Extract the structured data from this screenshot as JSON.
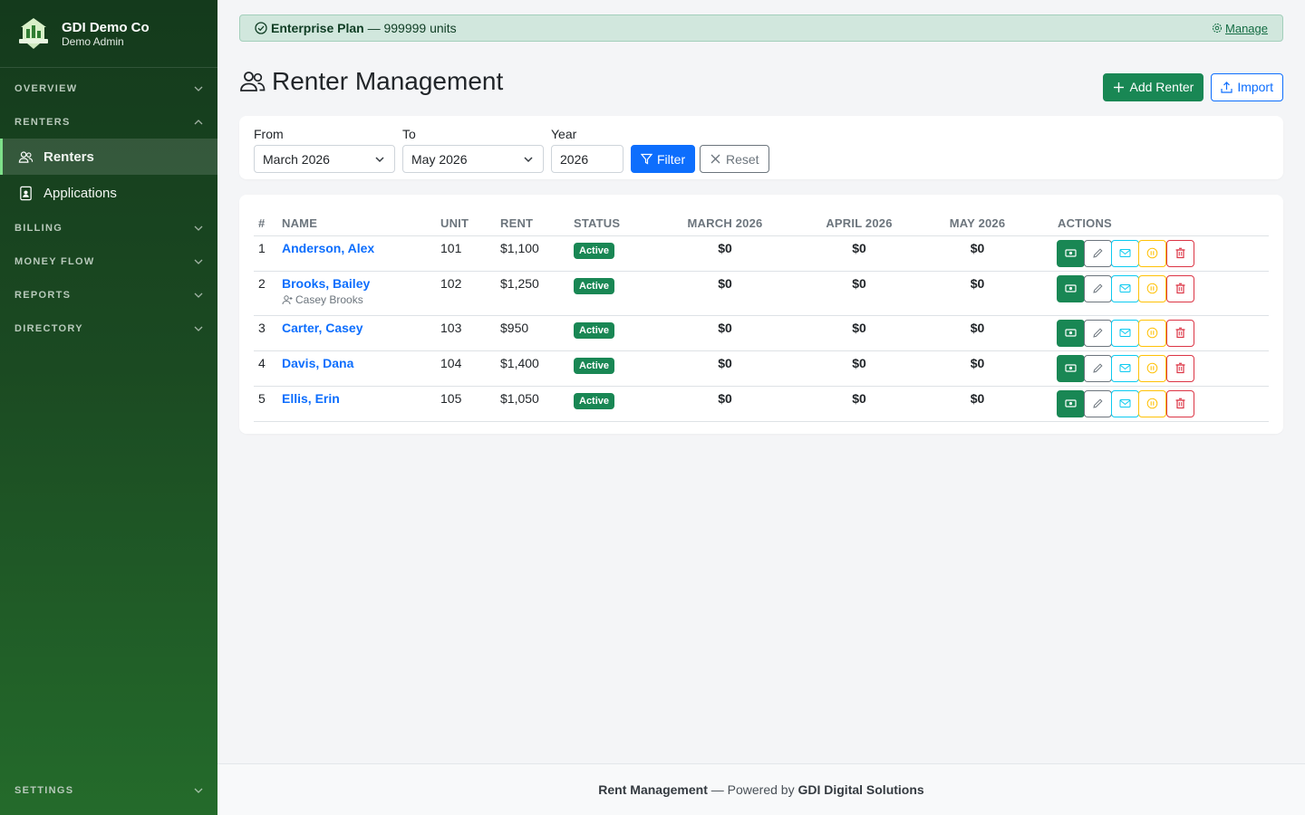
{
  "brand": {
    "name": "GDI Demo Co",
    "subtitle": "Demo Admin"
  },
  "sidebar": {
    "sections": [
      {
        "label": "OVERVIEW",
        "expanded": false
      },
      {
        "label": "RENTERS",
        "expanded": true,
        "items": [
          {
            "label": "Renters",
            "icon": "users-icon",
            "active": true
          },
          {
            "label": "Applications",
            "icon": "document-person-icon",
            "active": false
          }
        ]
      },
      {
        "label": "BILLING",
        "expanded": false
      },
      {
        "label": "MONEY FLOW",
        "expanded": false
      },
      {
        "label": "REPORTS",
        "expanded": false
      },
      {
        "label": "DIRECTORY",
        "expanded": false
      }
    ],
    "settings_label": "SETTINGS"
  },
  "plan": {
    "name": "Enterprise Plan",
    "detail": "— 999999 units",
    "manage_label": "Manage"
  },
  "page": {
    "title": "Renter Management",
    "add_label": "Add Renter",
    "import_label": "Import"
  },
  "filters": {
    "from_label": "From",
    "from_value": "March 2026",
    "to_label": "To",
    "to_value": "May 2026",
    "year_label": "Year",
    "year_value": "2026",
    "filter_label": "Filter",
    "reset_label": "Reset"
  },
  "table": {
    "headers": [
      "#",
      "NAME",
      "UNIT",
      "RENT",
      "STATUS",
      "MARCH 2026",
      "APRIL 2026",
      "MAY 2026",
      "ACTIONS"
    ],
    "rows": [
      {
        "num": "1",
        "name": "Anderson, Alex",
        "sub": "",
        "unit": "101",
        "rent": "$1,100",
        "status": "Active",
        "m1": "$0",
        "m2": "$0",
        "m3": "$0"
      },
      {
        "num": "2",
        "name": "Brooks, Bailey",
        "sub": "Casey Brooks",
        "unit": "102",
        "rent": "$1,250",
        "status": "Active",
        "m1": "$0",
        "m2": "$0",
        "m3": "$0"
      },
      {
        "num": "3",
        "name": "Carter, Casey",
        "sub": "",
        "unit": "103",
        "rent": "$950",
        "status": "Active",
        "m1": "$0",
        "m2": "$0",
        "m3": "$0"
      },
      {
        "num": "4",
        "name": "Davis, Dana",
        "sub": "",
        "unit": "104",
        "rent": "$1,400",
        "status": "Active",
        "m1": "$0",
        "m2": "$0",
        "m3": "$0"
      },
      {
        "num": "5",
        "name": "Ellis, Erin",
        "sub": "",
        "unit": "105",
        "rent": "$1,050",
        "status": "Active",
        "m1": "$0",
        "m2": "$0",
        "m3": "$0"
      }
    ]
  },
  "footer": {
    "app": "Rent Management",
    "middle": " — Powered by ",
    "company": "GDI Digital Solutions"
  },
  "colors": {
    "accent": "#198754",
    "primary": "#0d6efd",
    "danger": "#dc3545",
    "warning": "#ffc107",
    "info": "#0dcaf0"
  }
}
